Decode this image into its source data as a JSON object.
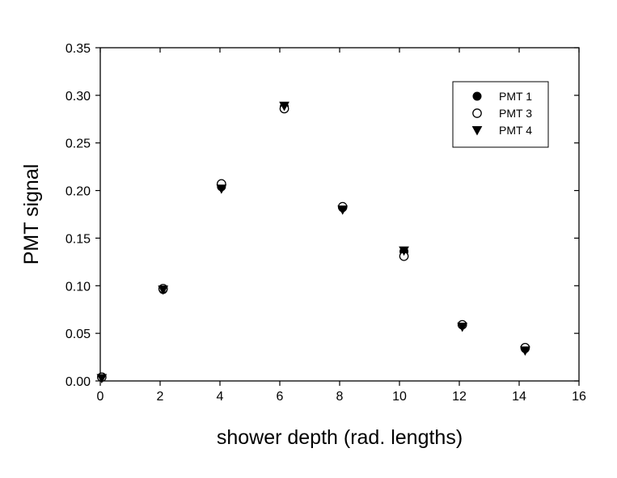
{
  "chart_data": {
    "type": "scatter",
    "xlabel": "shower depth (rad. lengths)",
    "ylabel": "PMT signal",
    "xlim": [
      0,
      16
    ],
    "ylim": [
      0,
      0.35
    ],
    "xticks": [
      0,
      2,
      4,
      6,
      8,
      10,
      12,
      14,
      16
    ],
    "yticks": [
      0.0,
      0.05,
      0.1,
      0.15,
      0.2,
      0.25,
      0.3,
      0.35
    ],
    "xtick_labels": [
      "0",
      "2",
      "4",
      "6",
      "8",
      "10",
      "12",
      "14",
      "16"
    ],
    "ytick_labels": [
      "0.00",
      "0.05",
      "0.10",
      "0.15",
      "0.20",
      "0.25",
      "0.30",
      "0.35"
    ],
    "legend_position": "top-right",
    "grid": false,
    "series": [
      {
        "name": "PMT 1",
        "marker": "filled-circle",
        "color": "#000000",
        "x": [
          0.05,
          2.1,
          4.05,
          6.15,
          8.1,
          10.15,
          12.1,
          14.2
        ],
        "y": [
          0.004,
          0.096,
          0.204,
          0.288,
          0.182,
          0.136,
          0.059,
          0.034
        ]
      },
      {
        "name": "PMT 3",
        "marker": "open-circle",
        "color": "#000000",
        "x": [
          0.05,
          2.1,
          4.05,
          6.15,
          8.1,
          10.15,
          12.1,
          14.2
        ],
        "y": [
          0.004,
          0.097,
          0.207,
          0.286,
          0.183,
          0.131,
          0.059,
          0.035
        ]
      },
      {
        "name": "PMT 4",
        "marker": "filled-triangle-down",
        "color": "#000000",
        "x": [
          0.05,
          2.1,
          4.05,
          6.15,
          8.1,
          10.15,
          12.1,
          14.2
        ],
        "y": [
          0.003,
          0.096,
          0.202,
          0.289,
          0.18,
          0.137,
          0.057,
          0.032
        ]
      }
    ]
  }
}
